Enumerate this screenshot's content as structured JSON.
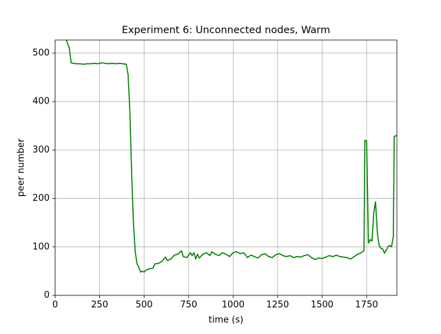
{
  "chart_data": {
    "type": "line",
    "title": "Experiment 6: Unconnected nodes, Warm",
    "x_label": "time (s)",
    "y_label": "peer number",
    "color": "#008000",
    "grid": true,
    "xlim": [
      0,
      1920
    ],
    "ylim": [
      0,
      527
    ],
    "xticks": [
      0,
      250,
      500,
      750,
      1000,
      1250,
      1500,
      1750
    ],
    "yticks": [
      0,
      100,
      200,
      300,
      400,
      500
    ],
    "x": [
      60,
      70,
      80,
      90,
      100,
      120,
      140,
      160,
      180,
      200,
      220,
      240,
      260,
      280,
      300,
      320,
      340,
      360,
      380,
      400,
      410,
      420,
      430,
      440,
      450,
      460,
      470,
      480,
      490,
      500,
      510,
      530,
      550,
      560,
      580,
      600,
      620,
      630,
      650,
      670,
      690,
      710,
      720,
      740,
      760,
      770,
      780,
      790,
      800,
      810,
      830,
      850,
      870,
      880,
      900,
      920,
      940,
      960,
      980,
      1000,
      1020,
      1040,
      1060,
      1080,
      1100,
      1120,
      1140,
      1160,
      1180,
      1200,
      1220,
      1240,
      1260,
      1280,
      1300,
      1320,
      1340,
      1360,
      1380,
      1400,
      1420,
      1440,
      1460,
      1480,
      1500,
      1520,
      1540,
      1560,
      1580,
      1600,
      1620,
      1640,
      1660,
      1680,
      1700,
      1720,
      1735,
      1740,
      1750,
      1760,
      1770,
      1780,
      1790,
      1800,
      1810,
      1820,
      1830,
      1840,
      1850,
      1860,
      1870,
      1880,
      1890,
      1900,
      1905,
      1920
    ],
    "values": [
      530,
      520,
      510,
      480,
      479,
      478,
      478,
      477,
      478,
      478,
      479,
      478,
      480,
      479,
      478,
      479,
      478,
      479,
      478,
      477,
      455,
      380,
      250,
      150,
      90,
      65,
      58,
      48,
      50,
      48,
      52,
      55,
      56,
      65,
      66,
      70,
      79,
      72,
      75,
      83,
      85,
      92,
      80,
      78,
      88,
      82,
      88,
      75,
      85,
      77,
      85,
      88,
      82,
      90,
      85,
      82,
      88,
      85,
      80,
      88,
      90,
      86,
      88,
      78,
      83,
      80,
      77,
      84,
      86,
      80,
      78,
      84,
      86,
      82,
      80,
      82,
      78,
      80,
      79,
      82,
      84,
      78,
      74,
      77,
      76,
      79,
      82,
      80,
      83,
      80,
      79,
      78,
      75,
      80,
      85,
      88,
      92,
      320,
      319,
      108,
      115,
      112,
      170,
      193,
      130,
      103,
      97,
      96,
      87,
      93,
      100,
      103,
      100,
      122,
      328,
      330
    ]
  }
}
